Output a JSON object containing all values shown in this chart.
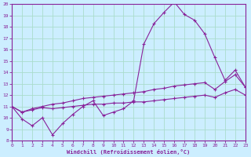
{
  "xlabel": "Windchill (Refroidissement éolien,°C)",
  "background_color": "#cceeff",
  "grid_color": "#aaddcc",
  "line_color": "#882299",
  "xmin": 0,
  "xmax": 23,
  "ymin": 8,
  "ymax": 20,
  "series": [
    {
      "x": [
        0,
        1,
        2,
        3,
        4,
        5,
        6,
        7,
        8,
        9,
        10,
        11,
        12,
        13,
        14,
        15,
        16,
        17,
        18,
        19,
        20,
        21,
        22,
        23
      ],
      "y": [
        11.0,
        9.9,
        9.3,
        10.0,
        8.5,
        9.5,
        10.3,
        11.0,
        11.5,
        10.2,
        10.5,
        10.8,
        11.5,
        16.5,
        18.3,
        19.3,
        20.2,
        19.1,
        18.6,
        17.4,
        15.3,
        13.3,
        14.2,
        12.7
      ]
    },
    {
      "x": [
        0,
        1,
        2,
        3,
        4,
        5,
        6,
        7,
        8,
        9,
        10,
        11,
        12,
        13,
        14,
        15,
        16,
        17,
        18,
        19,
        20,
        21,
        22,
        23
      ],
      "y": [
        11.0,
        10.5,
        10.8,
        11.0,
        11.2,
        11.3,
        11.5,
        11.7,
        11.8,
        11.9,
        12.0,
        12.1,
        12.2,
        12.3,
        12.5,
        12.6,
        12.8,
        12.9,
        13.0,
        13.1,
        12.5,
        13.2,
        13.8,
        12.7
      ]
    },
    {
      "x": [
        0,
        1,
        2,
        3,
        4,
        5,
        6,
        7,
        8,
        9,
        10,
        11,
        12,
        13,
        14,
        15,
        16,
        17,
        18,
        19,
        20,
        21,
        22,
        23
      ],
      "y": [
        11.0,
        10.5,
        10.7,
        10.9,
        10.8,
        10.9,
        11.0,
        11.1,
        11.2,
        11.2,
        11.3,
        11.3,
        11.4,
        11.4,
        11.5,
        11.6,
        11.7,
        11.8,
        11.9,
        12.0,
        11.8,
        12.2,
        12.5,
        12.0
      ]
    }
  ]
}
